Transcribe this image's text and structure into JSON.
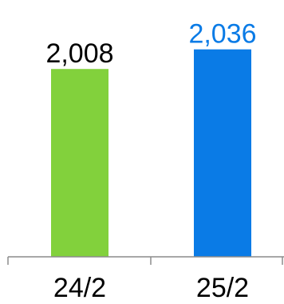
{
  "chart_data": {
    "type": "bar",
    "categories": [
      "24/2",
      "25/2"
    ],
    "values": [
      2008,
      2036
    ],
    "value_labels": [
      "2,008",
      "2,036"
    ],
    "bar_colors": [
      "#82d13c",
      "#0a7be6"
    ],
    "label_colors": [
      "#000000",
      "#0a7be6"
    ],
    "axis_color": "#8c8c8c",
    "title": "",
    "xlabel": "",
    "ylabel": "",
    "grid": false,
    "legend": "none"
  }
}
